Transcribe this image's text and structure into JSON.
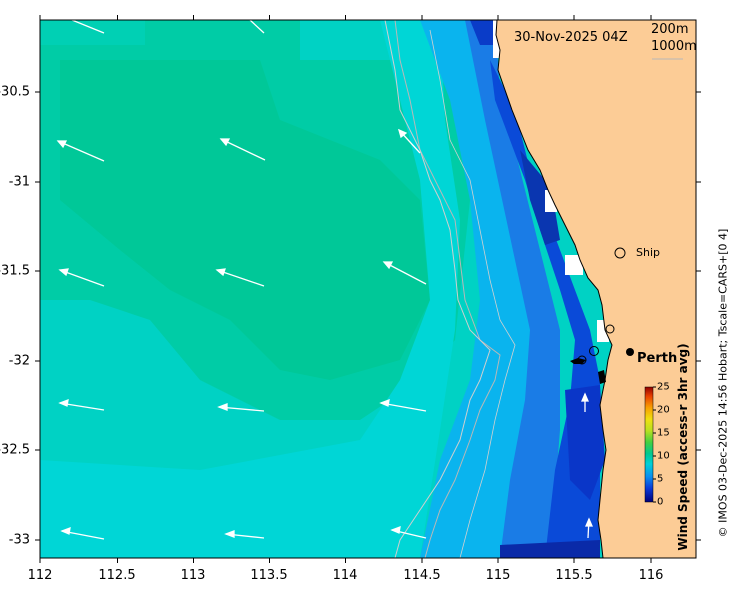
{
  "date_label": "30-Nov-2025 04Z",
  "isobath_labels": [
    "200m",
    "1000m"
  ],
  "x_ticks": [
    "112",
    "112.5",
    "113",
    "113.5",
    "114",
    "114.5",
    "115",
    "115.5",
    "116"
  ],
  "y_ticks": [
    "-30.5",
    "-31",
    "-31.5",
    "-32",
    "-32.5",
    "-33"
  ],
  "ship_label": "Ship",
  "city_label": "Perth",
  "colorbar": {
    "title": "Wind Speed (access-r 3hr avg)",
    "ticks": [
      "25",
      "20",
      "15",
      "10",
      "5",
      "0"
    ],
    "range": [
      0,
      25
    ]
  },
  "credit": "© IMOS 03-Dec-2025 14:56 Hobart; Tscale=CARS+[0 4]",
  "colors": {
    "land": "#fccc96",
    "frame": "#000000"
  },
  "map_extent": {
    "lon": [
      112,
      116.3
    ],
    "lat": [
      -33.1,
      -30.1
    ]
  }
}
